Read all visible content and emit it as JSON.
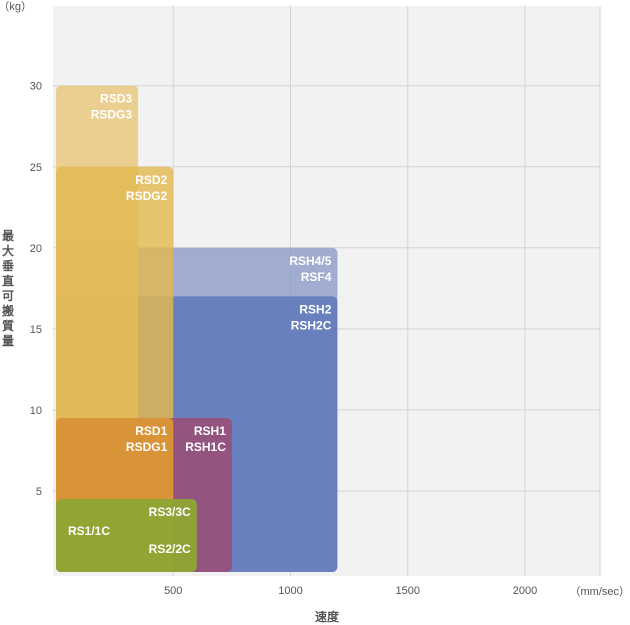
{
  "chart_data": {
    "type": "area",
    "y_unit": "（kg）",
    "x_unit": "（mm/sec）",
    "ylabel": "最大垂直可搬質量",
    "xlabel": "速度",
    "xlim": [
      0,
      2400
    ],
    "ylim": [
      0,
      30
    ],
    "x_ticks": [
      500,
      1000,
      1500,
      2000
    ],
    "y_ticks": [
      5,
      10,
      15,
      20,
      25,
      30
    ],
    "grid": true,
    "series": [
      {
        "labels": [
          "RSH4/5",
          "RSF4"
        ],
        "x": [
          0,
          1200
        ],
        "y": [
          0,
          20
        ],
        "color": "#8d9ec8"
      },
      {
        "labels": [
          "RSH2",
          "RSH2C"
        ],
        "x": [
          0,
          1200
        ],
        "y": [
          0,
          17
        ],
        "color": "#5d76b9"
      },
      {
        "labels": [
          "RSD3",
          "RSDG3"
        ],
        "x": [
          0,
          350
        ],
        "y": [
          0,
          30
        ],
        "color": "#e8c77a"
      },
      {
        "labels": [
          "RSD2",
          "RSDG2"
        ],
        "x": [
          0,
          500
        ],
        "y": [
          0,
          25
        ],
        "color": "#e3b84f"
      },
      {
        "labels": [
          "RSH1",
          "RSH1C"
        ],
        "x": [
          0,
          750
        ],
        "y": [
          0,
          9.5
        ],
        "color": "#9c4a72"
      },
      {
        "labels": [
          "RSD1",
          "RSDG1"
        ],
        "x": [
          0,
          500
        ],
        "y": [
          0,
          9.5
        ],
        "color": "#e4a02c"
      },
      {
        "labels": [
          "RS3/3C"
        ],
        "x": [
          0,
          600
        ],
        "y": [
          0,
          4.5
        ],
        "color": "#9aab3c"
      },
      {
        "labels": [
          "RS1/1C",
          "RS2/2C"
        ],
        "x": [
          0,
          600
        ],
        "y": [
          0,
          4.5
        ],
        "color": "#8ea433"
      }
    ]
  }
}
